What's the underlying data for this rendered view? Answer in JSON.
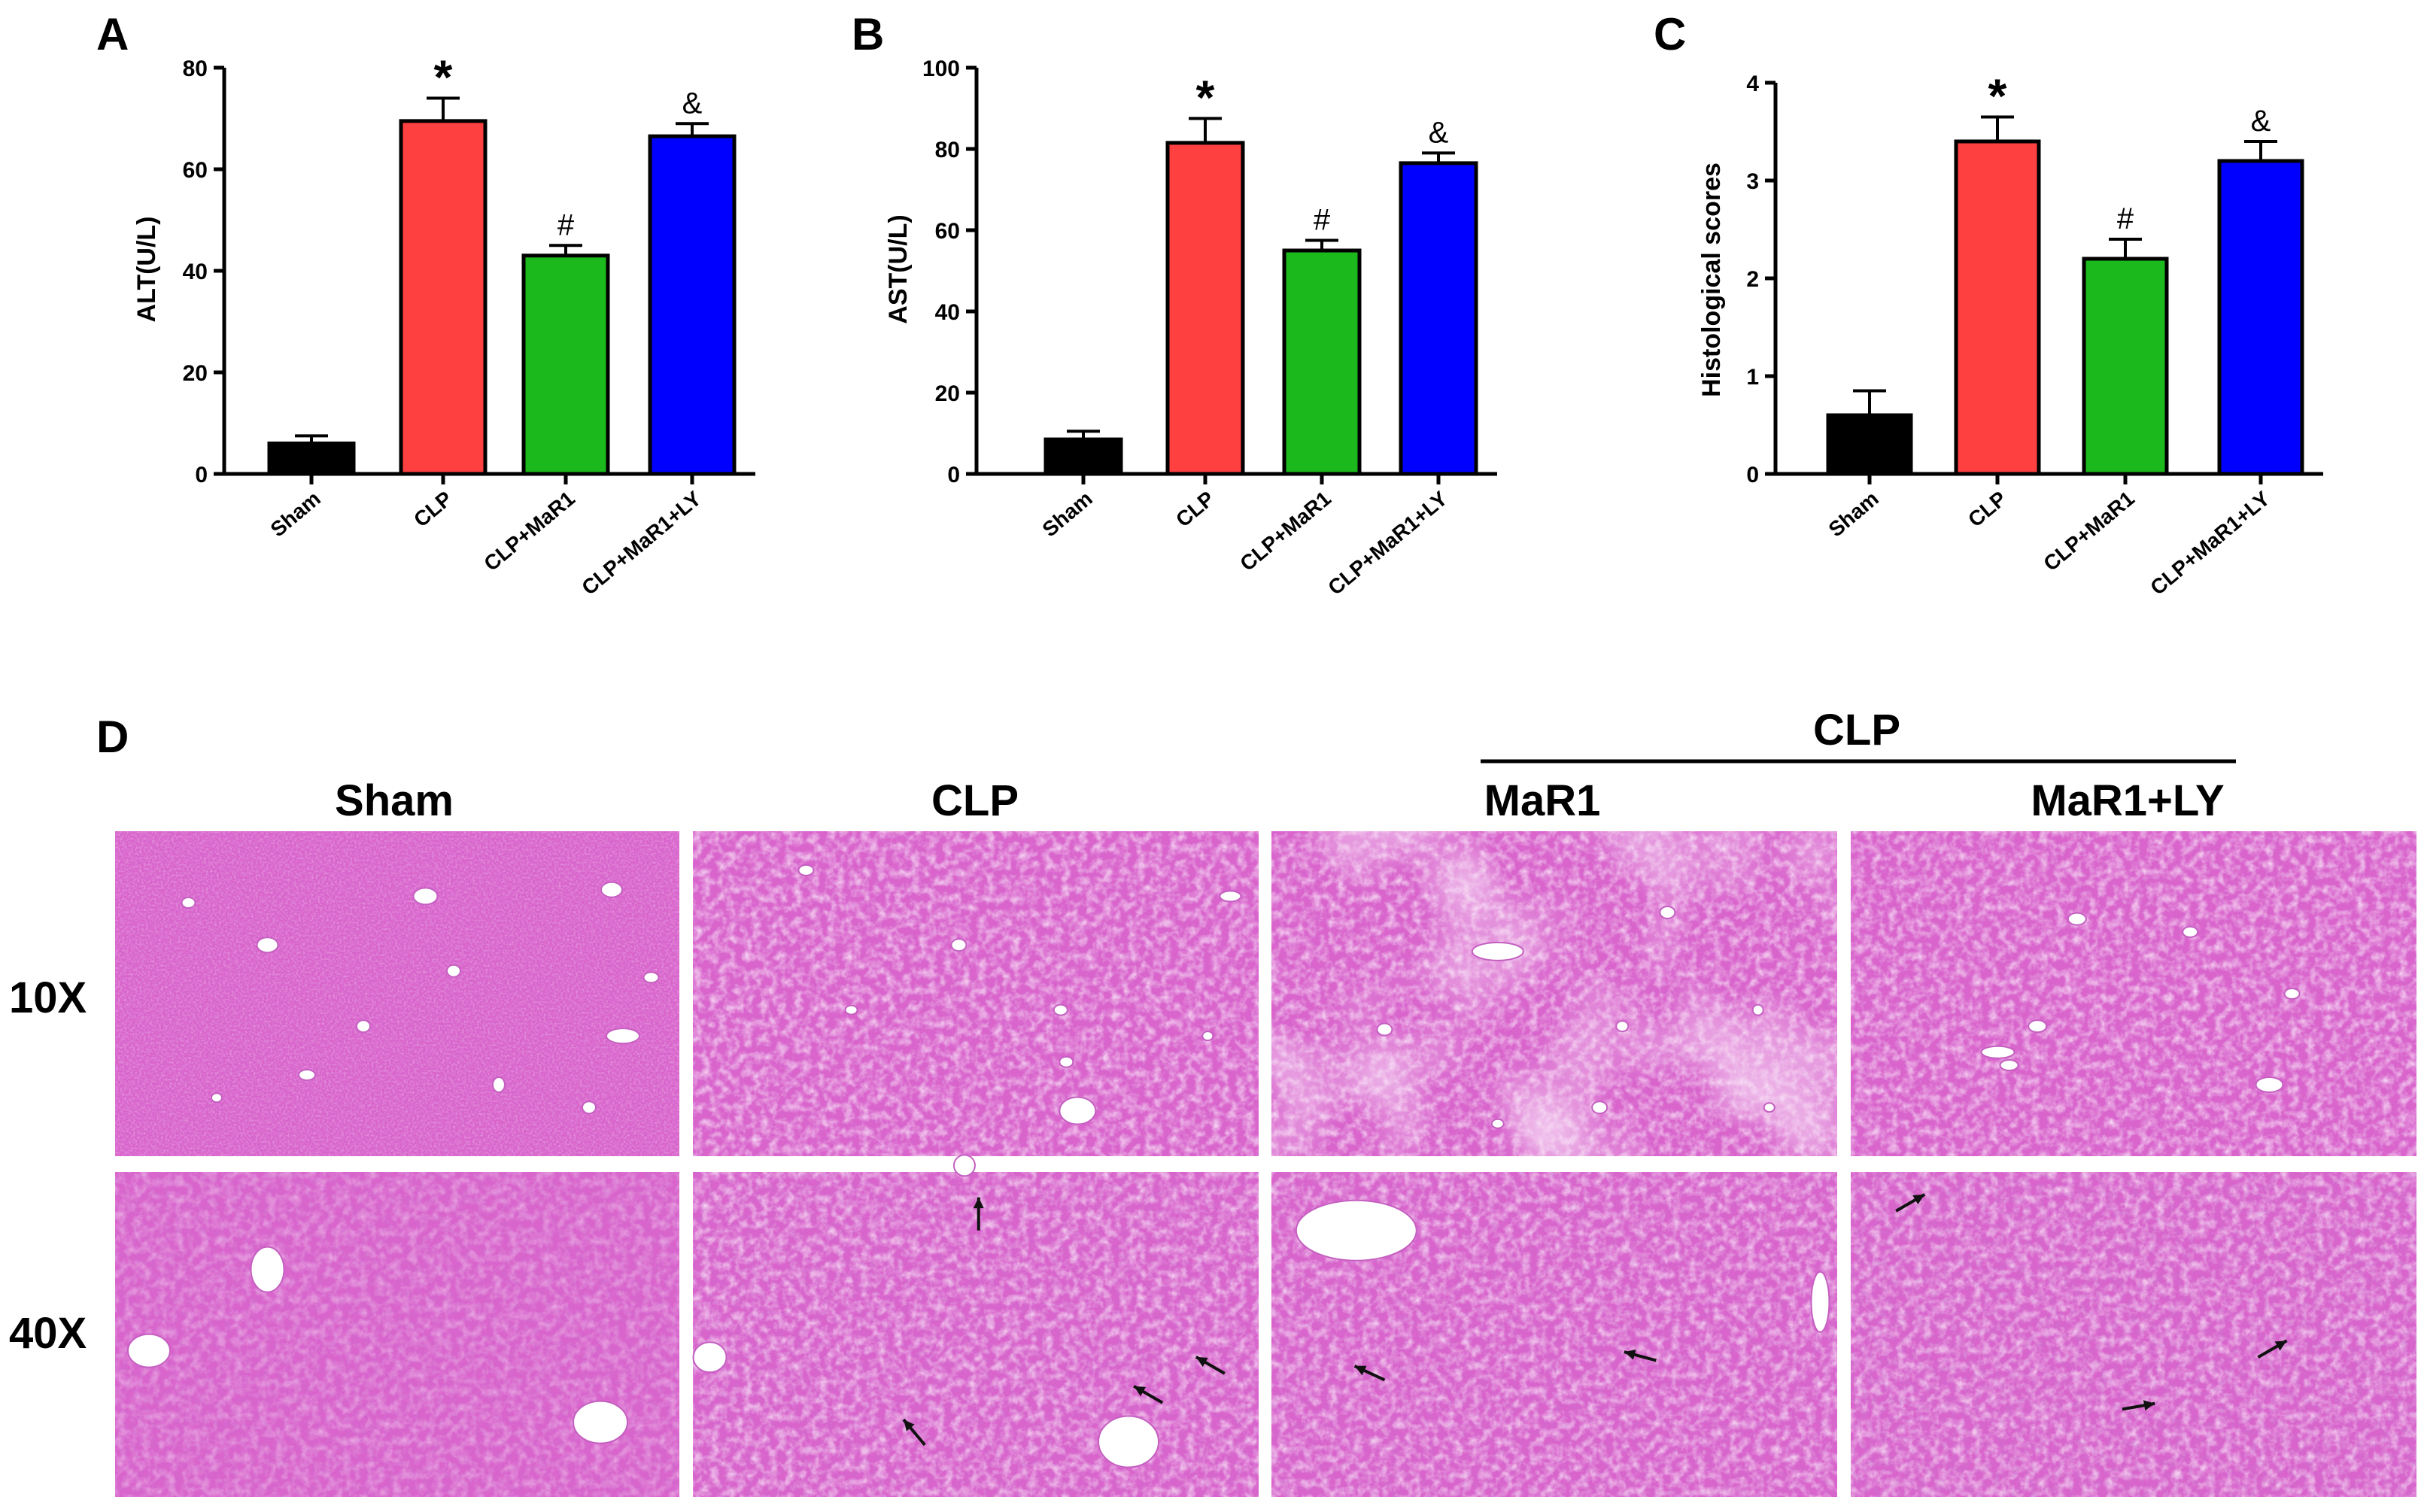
{
  "colors": {
    "bar_fills": [
      "#000000",
      "#ff4040",
      "#1cb91c",
      "#0000ff"
    ],
    "tissue_base": "#d864cc",
    "tissue_light": "#eeb7ea",
    "tissue_dark": "#b43fb4"
  },
  "chart_data": [
    {
      "panel": "A",
      "type": "bar",
      "categories": [
        "Sham",
        "CLP",
        "CLP+MaR1",
        "CLP+MaR1+LY"
      ],
      "values": [
        6,
        69.5,
        43,
        66.5
      ],
      "errors": [
        1.5,
        4.5,
        2,
        2.5
      ],
      "significance": [
        "",
        "*",
        "#",
        "&"
      ],
      "ylabel": "ALT(U/L)",
      "ylim": [
        0,
        80
      ],
      "yticks": [
        0,
        20,
        40,
        60,
        80
      ],
      "ytick_labels": [
        "0",
        "20",
        "40",
        "60",
        "80"
      ]
    },
    {
      "panel": "B",
      "type": "bar",
      "categories": [
        "Sham",
        "CLP",
        "CLP+MaR1",
        "CLP+MaR1+LY"
      ],
      "values": [
        8.5,
        81.5,
        55,
        76.5
      ],
      "errors": [
        2,
        6,
        2.5,
        2.5
      ],
      "significance": [
        "",
        "*",
        "#",
        "&"
      ],
      "ylabel": "AST(U/L)",
      "ylim": [
        0,
        100
      ],
      "yticks": [
        0,
        20,
        40,
        60,
        80,
        100
      ],
      "ytick_labels": [
        "0",
        "20",
        "40",
        "60",
        "80",
        "100"
      ]
    },
    {
      "panel": "C",
      "type": "bar",
      "categories": [
        "Sham",
        "CLP",
        "CLP+MaR1",
        "CLP+MaR1+LY"
      ],
      "values": [
        0.6,
        3.4,
        2.2,
        3.2
      ],
      "errors": [
        0.25,
        0.25,
        0.2,
        0.2
      ],
      "significance": [
        "",
        "*",
        "#",
        "&"
      ],
      "ylabel": "Histological scores",
      "ylim": [
        0,
        4
      ],
      "yticks": [
        0,
        1,
        2,
        3,
        4
      ],
      "ytick_labels": [
        "0",
        "1",
        "2",
        "3",
        "4"
      ]
    }
  ],
  "micrographs": {
    "panel": "D",
    "group_header": "CLP",
    "columns": [
      "Sham",
      "CLP",
      "MaR1",
      "MaR1+LY"
    ],
    "rows": [
      "10X",
      "40X"
    ]
  }
}
